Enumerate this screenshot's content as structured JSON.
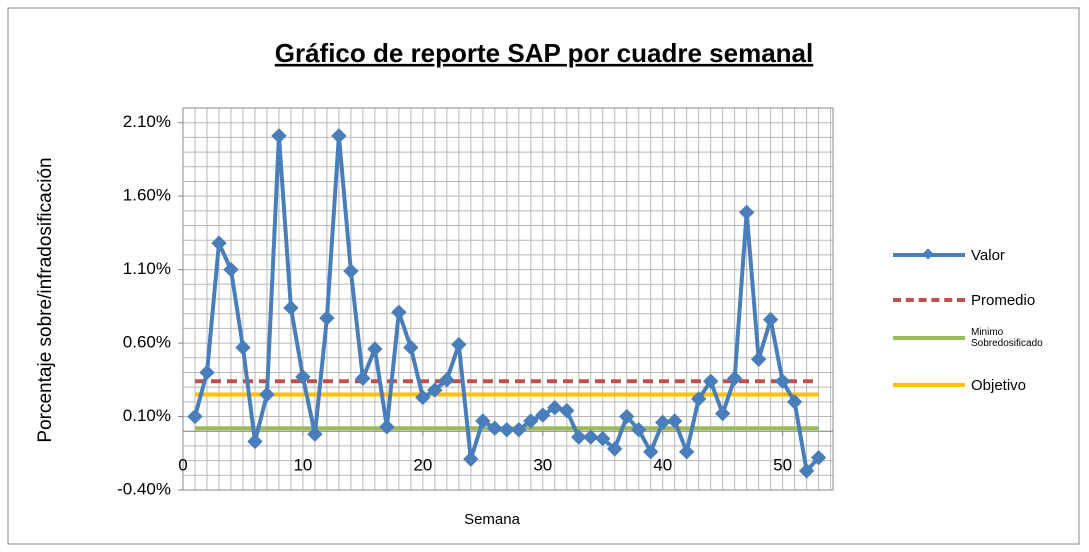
{
  "chart_data": {
    "type": "line",
    "title": "Gráfico de reporte SAP por cuadre semanal",
    "xlabel": "Semana",
    "ylabel": "Porcentaje sobre/infradosificación",
    "xlim": [
      0,
      54.2
    ],
    "xticks": [
      0,
      10,
      20,
      30,
      40,
      50
    ],
    "ylim": [
      -0.4,
      2.2
    ],
    "yticks": [
      {
        "value": -0.4,
        "label": "-0.40%"
      },
      {
        "value": 0.1,
        "label": "0.10%"
      },
      {
        "value": 0.6,
        "label": "0.60%"
      },
      {
        "value": 1.1,
        "label": "1.10%"
      },
      {
        "value": 1.6,
        "label": "1.60%"
      },
      {
        "value": 2.1,
        "label": "2.10%"
      }
    ],
    "minor_grid": {
      "x": 1,
      "y": 0.1
    },
    "legend": "right",
    "series": [
      {
        "name": "Valor",
        "color": "#4a7ebb",
        "marker": "diamond",
        "x": [
          1,
          2,
          3,
          4,
          5,
          6,
          7,
          8,
          9,
          10,
          11,
          12,
          13,
          14,
          15,
          16,
          17,
          18,
          19,
          20,
          21,
          22,
          23,
          24,
          25,
          26,
          27,
          28,
          29,
          30,
          31,
          32,
          33,
          34,
          35,
          36,
          37,
          38,
          39,
          40,
          41,
          42,
          43,
          44,
          45,
          46,
          47,
          48,
          49,
          50,
          51,
          52,
          53
        ],
        "values": [
          0.1,
          0.4,
          1.28,
          1.1,
          0.57,
          -0.07,
          0.25,
          2.01,
          0.84,
          0.37,
          -0.02,
          0.77,
          2.01,
          1.09,
          0.36,
          0.56,
          0.03,
          0.81,
          0.57,
          0.23,
          0.28,
          0.35,
          0.59,
          -0.19,
          0.07,
          0.02,
          0.01,
          0.01,
          0.07,
          0.11,
          0.16,
          0.14,
          -0.04,
          -0.04,
          -0.05,
          -0.12,
          0.1,
          0.01,
          -0.14,
          0.06,
          0.07,
          -0.14,
          0.22,
          0.34,
          0.12,
          0.36,
          1.49,
          0.49,
          0.76,
          0.34,
          0.2,
          -0.27,
          -0.18
        ]
      },
      {
        "name": "Promedio",
        "color": "#c0504d",
        "dash": true,
        "x": [
          1,
          53
        ],
        "values": [
          0.34,
          0.34
        ]
      },
      {
        "name": "Minimo Sobredosificado",
        "color": "#9bbb59",
        "x": [
          1,
          53
        ],
        "values": [
          0.02,
          0.02
        ]
      },
      {
        "name": "Objetivo",
        "color": "#ffc000",
        "x": [
          1,
          53
        ],
        "values": [
          0.25,
          0.25
        ]
      }
    ]
  }
}
